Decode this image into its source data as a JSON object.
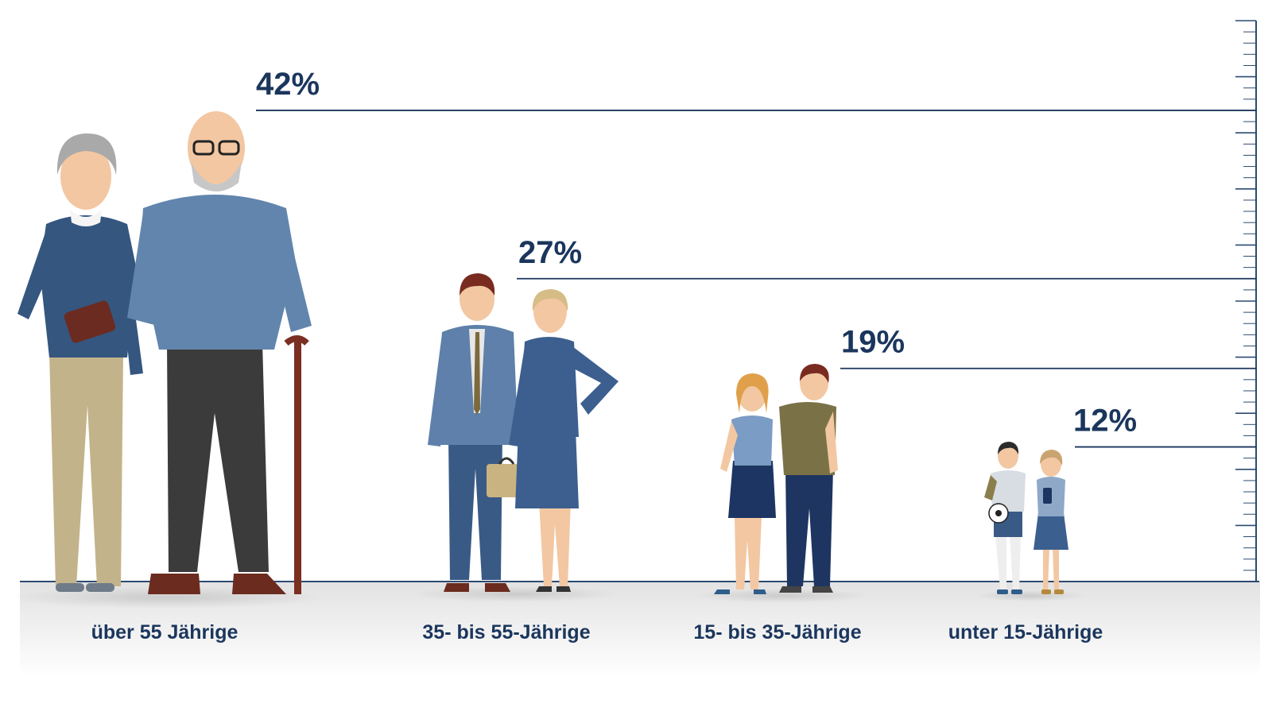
{
  "chart_data": {
    "type": "bar",
    "categories": [
      "über 55 Jährige",
      "35- bis 55-Jährige",
      "15- bis 35-Jährige",
      "unter 15-Jährige"
    ],
    "values": [
      42,
      27,
      19,
      12
    ],
    "value_labels": [
      "42%",
      "27%",
      "19%",
      "12%"
    ],
    "ylim": [
      0,
      50
    ],
    "grid": false,
    "legend": "none"
  },
  "colors": {
    "navy": "#1b365d",
    "axis": "#2c4a70",
    "floor_top": "#e4e4e4",
    "floor_bottom": "#ffffff"
  },
  "icons": [
    "senior-couple-icon",
    "adult-business-couple-icon",
    "young-adult-couple-icon",
    "children-couple-icon"
  ]
}
